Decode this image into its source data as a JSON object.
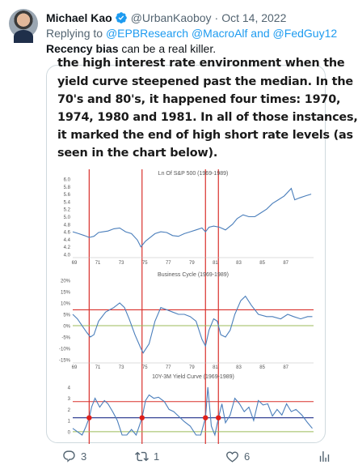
{
  "tweet": {
    "author_name": "Michael Kao",
    "handle": "@UrbanKaoboy",
    "separator": "·",
    "date": "Oct 14, 2022",
    "replying_prefix": "Replying to",
    "replying_to": "@EPBResearch @MacroAlf and @FedGuy12",
    "text_bold": "Recency bias",
    "text_rest": " can be a real killer."
  },
  "media": {
    "cut_line": "the high interest rate environment when the",
    "lines": [
      "yield curve steepened past the median. In the",
      "70's and 80's, it happened four times: 1970,",
      "1974, 1980 and 1981. In all of those instances,",
      "it marked the end of high short rate levels (as",
      "seen in the chart below)."
    ]
  },
  "actions": {
    "reply_count": "3",
    "retweet_count": "1",
    "like_count": "6"
  },
  "chart_data": [
    {
      "type": "line",
      "title": "Ln Of S&P 500 (1969-1989)",
      "x_tick_labels": [
        "69",
        "71",
        "73",
        "75",
        "77",
        "79",
        "81",
        "83",
        "85",
        "87"
      ],
      "y_tick_labels": [
        "4.0",
        "4.2",
        "4.4",
        "4.6",
        "4.8",
        "5.0",
        "5.2",
        "5.4",
        "5.6",
        "5.8",
        "6.0"
      ],
      "ylim": [
        4.0,
        6.0
      ],
      "xlim": [
        1969,
        1989.5
      ],
      "x": [
        1969.0,
        1969.5,
        1970.0,
        1970.4,
        1970.8,
        1971.2,
        1971.6,
        1972.0,
        1972.5,
        1973.0,
        1973.5,
        1974.0,
        1974.5,
        1974.8,
        1975.2,
        1975.6,
        1976.0,
        1976.5,
        1977.0,
        1977.5,
        1978.0,
        1978.5,
        1979.0,
        1979.5,
        1980.0,
        1980.3,
        1980.6,
        1981.0,
        1981.5,
        1982.0,
        1982.6,
        1983.0,
        1983.5,
        1984.0,
        1984.5,
        1985.0,
        1985.5,
        1986.0,
        1986.5,
        1987.0,
        1987.6,
        1987.9,
        1988.3,
        1988.8,
        1989.3
      ],
      "values": [
        4.6,
        4.55,
        4.5,
        4.45,
        4.48,
        4.58,
        4.6,
        4.62,
        4.68,
        4.7,
        4.6,
        4.55,
        4.38,
        4.2,
        4.35,
        4.45,
        4.55,
        4.6,
        4.58,
        4.5,
        4.48,
        4.55,
        4.6,
        4.65,
        4.7,
        4.6,
        4.72,
        4.75,
        4.72,
        4.65,
        4.8,
        4.95,
        5.05,
        5.0,
        5.0,
        5.1,
        5.2,
        5.35,
        5.45,
        5.55,
        5.75,
        5.45,
        5.5,
        5.55,
        5.6
      ],
      "reference_lines_x": [
        1970.4,
        1974.9,
        1980.3,
        1981.4
      ]
    },
    {
      "type": "line",
      "title": "Business Cycle (1969-1989)",
      "x_tick_labels": [
        "69",
        "71",
        "73",
        "75",
        "77",
        "79",
        "81",
        "83",
        "85",
        "87"
      ],
      "y_tick_labels": [
        "-15%",
        "-10%",
        "-5%",
        "0%",
        "5%",
        "10%",
        "15%",
        "20%"
      ],
      "ylim": [
        -15,
        20
      ],
      "xlim": [
        1969,
        1989.5
      ],
      "x": [
        1969.0,
        1969.4,
        1969.8,
        1970.2,
        1970.5,
        1970.8,
        1971.2,
        1971.8,
        1972.5,
        1973.0,
        1973.4,
        1973.8,
        1974.3,
        1974.8,
        1975.0,
        1975.5,
        1976.0,
        1976.5,
        1977.0,
        1977.5,
        1978.0,
        1978.5,
        1979.0,
        1979.5,
        1980.0,
        1980.3,
        1980.6,
        1981.0,
        1981.3,
        1981.6,
        1982.0,
        1982.4,
        1982.8,
        1983.3,
        1983.7,
        1984.2,
        1984.8,
        1985.5,
        1986.0,
        1986.7,
        1987.3,
        1987.8,
        1988.4,
        1989.0,
        1989.4
      ],
      "values": [
        5,
        3,
        0,
        -3,
        -5,
        -4,
        2,
        6,
        8,
        10,
        8,
        3,
        -4,
        -10,
        -12,
        -8,
        2,
        8,
        7,
        6,
        5,
        5,
        4,
        2,
        -6,
        -9,
        -2,
        3,
        2,
        -4,
        -5,
        -2,
        5,
        11,
        13,
        9,
        5,
        4,
        4,
        3,
        5,
        4,
        3,
        4,
        4
      ],
      "reference_lines_x": [
        1970.4,
        1974.9,
        1980.3,
        1981.4
      ],
      "horizontal_reference_lines": [
        {
          "value": 7,
          "color": "#d9302c"
        },
        {
          "value": 0,
          "color": "#9bbb59"
        }
      ]
    },
    {
      "type": "line",
      "title": "10Y-3M Yield Curve (1969-1989)",
      "y_tick_labels": [
        "0",
        "1",
        "2",
        "3",
        "4"
      ],
      "ylim": [
        -0.3,
        4.5
      ],
      "xlim": [
        1969,
        1989.5
      ],
      "x": [
        1969.0,
        1969.4,
        1969.8,
        1970.1,
        1970.4,
        1970.6,
        1970.9,
        1971.3,
        1971.7,
        1972.0,
        1972.4,
        1972.8,
        1973.2,
        1973.6,
        1974.0,
        1974.4,
        1974.9,
        1975.2,
        1975.5,
        1975.9,
        1976.3,
        1976.8,
        1977.2,
        1977.6,
        1978.0,
        1978.5,
        1979.0,
        1979.5,
        1979.9,
        1980.1,
        1980.3,
        1980.5,
        1980.8,
        1981.1,
        1981.4,
        1981.7,
        1982.0,
        1982.4,
        1982.8,
        1983.2,
        1983.6,
        1984.0,
        1984.4,
        1984.8,
        1985.2,
        1985.6,
        1986.0,
        1986.4,
        1986.8,
        1987.2,
        1987.6,
        1988.0,
        1988.5,
        1989.0,
        1989.4
      ],
      "values": [
        0.3,
        0.0,
        -0.3,
        0.4,
        1.25,
        2.2,
        3.0,
        2.2,
        2.8,
        2.5,
        1.8,
        1.0,
        -0.3,
        -0.3,
        0.2,
        -0.3,
        1.25,
        2.8,
        3.3,
        3.0,
        3.1,
        2.7,
        2.0,
        1.8,
        1.4,
        0.9,
        0.5,
        -0.3,
        -0.3,
        0.5,
        1.25,
        4.0,
        0.5,
        -0.3,
        1.25,
        2.5,
        0.8,
        1.5,
        3.0,
        2.5,
        1.8,
        2.2,
        1.0,
        2.8,
        2.4,
        2.5,
        1.4,
        2.0,
        1.5,
        2.5,
        1.8,
        2.0,
        1.5,
        0.8,
        0.3
      ],
      "reference_lines_x": [
        1970.4,
        1974.9,
        1980.3,
        1981.4
      ],
      "horizontal_reference_lines": [
        {
          "value": 2.7,
          "color": "#d9302c"
        },
        {
          "value": 1.25,
          "color": "#1f2f8a"
        },
        {
          "value": 0,
          "color": "#9bbb59"
        }
      ],
      "markers": [
        {
          "x": 1970.4,
          "y": 1.25
        },
        {
          "x": 1974.9,
          "y": 1.25
        },
        {
          "x": 1980.3,
          "y": 1.25
        },
        {
          "x": 1981.4,
          "y": 1.25
        }
      ]
    }
  ]
}
